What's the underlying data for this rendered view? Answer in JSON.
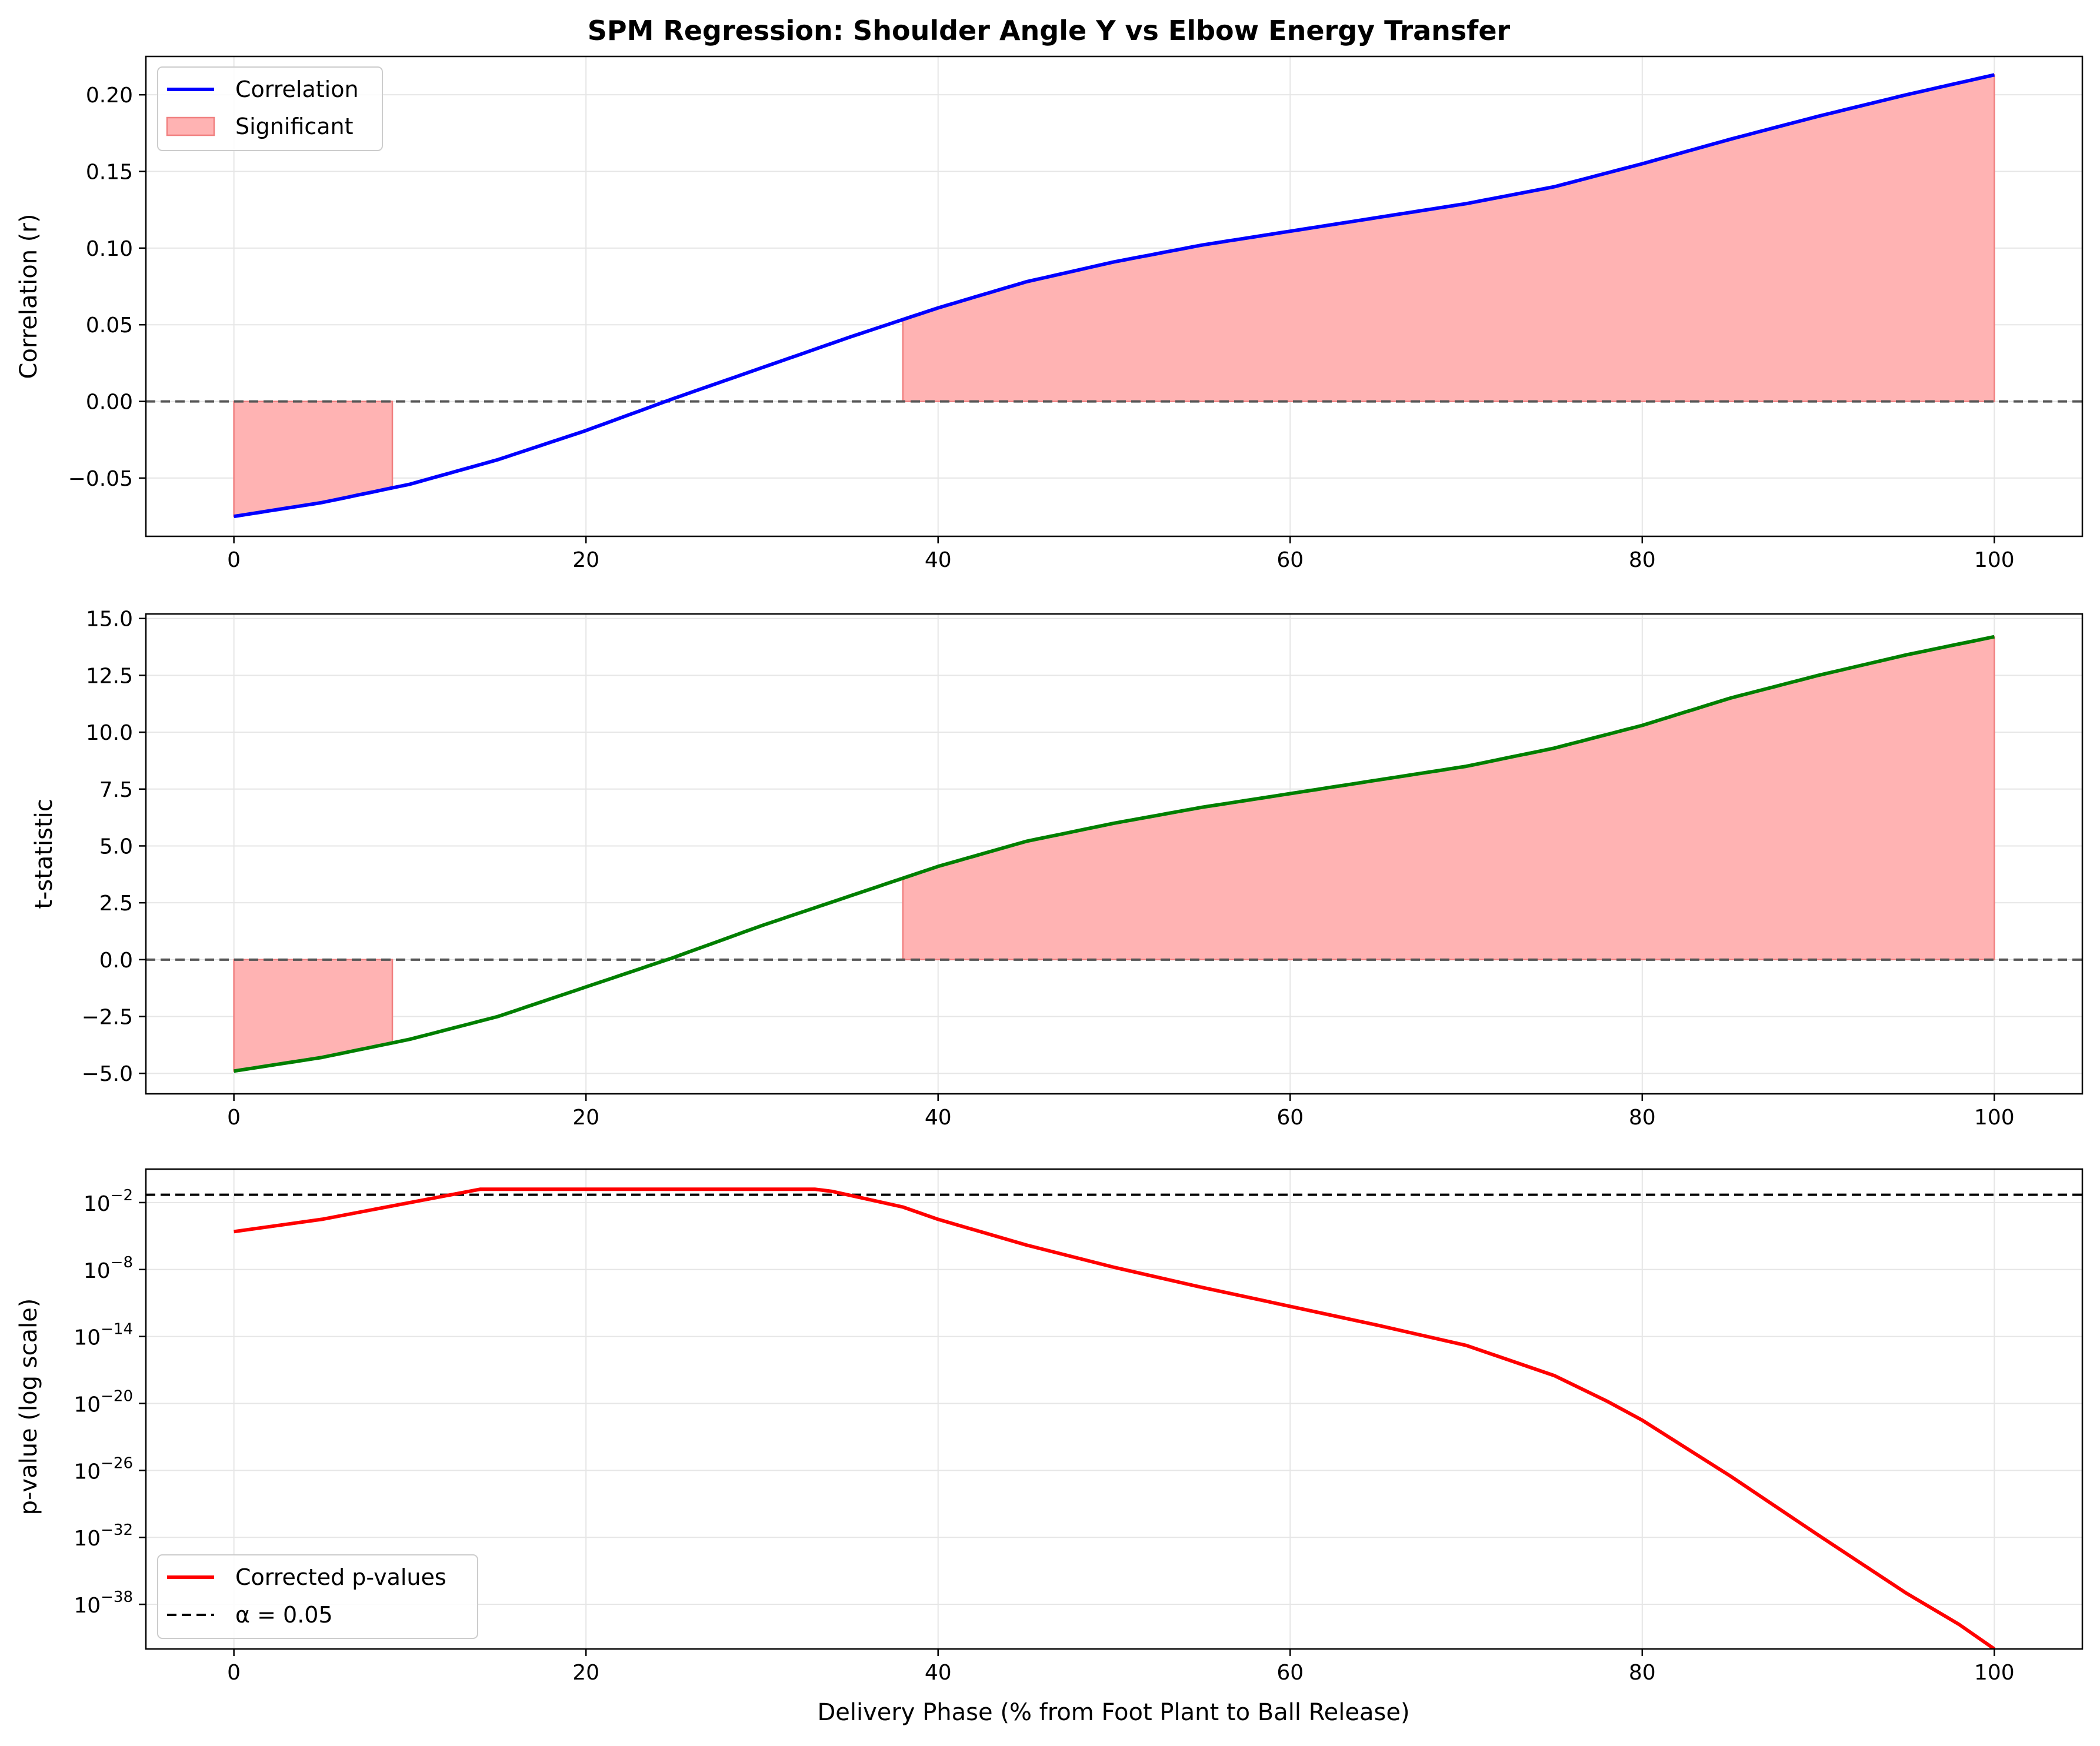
{
  "colors": {
    "correlation_line": "#0000ff",
    "t_line": "#007f00",
    "p_line": "#ff0000",
    "significant_fill": "#ffb3b3",
    "significant_edge": "#f08080",
    "zero_line": "#555555",
    "alpha_line": "#000000",
    "grid": "#e6e6e6"
  },
  "chart_data": [
    {
      "type": "area",
      "title": "SPM Regression: Shoulder Angle Y vs Elbow Energy Transfer",
      "ylabel": "Correlation (r)",
      "xlabel": "",
      "xlim": [
        -5,
        105
      ],
      "ylim": [
        -0.088,
        0.225
      ],
      "xticks": [
        0,
        20,
        40,
        60,
        80,
        100
      ],
      "yticks": [
        -0.05,
        0.0,
        0.05,
        0.1,
        0.15,
        0.2
      ],
      "ytick_labels": [
        "−0.05",
        "0.00",
        "0.05",
        "0.10",
        "0.15",
        "0.20"
      ],
      "grid": true,
      "legend": {
        "placement": "upper-left",
        "entries": [
          "Correlation",
          "Significant"
        ]
      },
      "reference_line": {
        "y": 0,
        "style": "dashed"
      },
      "significant_regions": [
        [
          0,
          9
        ],
        [
          38,
          100
        ]
      ],
      "series": [
        {
          "name": "Correlation",
          "x": [
            0,
            5,
            10,
            15,
            20,
            25,
            30,
            35,
            40,
            45,
            50,
            55,
            60,
            65,
            70,
            75,
            80,
            85,
            90,
            95,
            100
          ],
          "y": [
            -0.075,
            -0.066,
            -0.054,
            -0.038,
            -0.019,
            0.002,
            0.022,
            0.042,
            0.061,
            0.078,
            0.091,
            0.102,
            0.111,
            0.12,
            0.129,
            0.14,
            0.155,
            0.171,
            0.186,
            0.2,
            0.213
          ]
        }
      ]
    },
    {
      "type": "area",
      "title": "",
      "ylabel": "t-statistic",
      "xlabel": "",
      "xlim": [
        -5,
        105
      ],
      "ylim": [
        -5.9,
        15.2
      ],
      "xticks": [
        0,
        20,
        40,
        60,
        80,
        100
      ],
      "yticks": [
        -5.0,
        -2.5,
        0.0,
        2.5,
        5.0,
        7.5,
        10.0,
        12.5,
        15.0
      ],
      "ytick_labels": [
        "−5.0",
        "−2.5",
        "0.0",
        "2.5",
        "5.0",
        "7.5",
        "10.0",
        "12.5",
        "15.0"
      ],
      "grid": true,
      "reference_line": {
        "y": 0,
        "style": "dashed"
      },
      "significant_regions": [
        [
          0,
          9
        ],
        [
          38,
          100
        ]
      ],
      "series": [
        {
          "name": "",
          "x": [
            0,
            5,
            10,
            15,
            20,
            25,
            30,
            35,
            40,
            45,
            50,
            55,
            60,
            65,
            70,
            75,
            80,
            85,
            90,
            95,
            100
          ],
          "y": [
            -4.9,
            -4.3,
            -3.5,
            -2.5,
            -1.2,
            0.1,
            1.5,
            2.8,
            4.1,
            5.2,
            6.0,
            6.7,
            7.3,
            7.9,
            8.5,
            9.3,
            10.3,
            11.5,
            12.5,
            13.4,
            14.2
          ]
        }
      ]
    },
    {
      "type": "line",
      "title": "",
      "ylabel": "p-value (log scale)",
      "xlabel": "Delivery Phase (% from Foot Plant to Ball Release)",
      "xlim": [
        -5,
        105
      ],
      "yscale": "log",
      "ylim_log10": [
        -42,
        1
      ],
      "xticks": [
        0,
        20,
        40,
        60,
        80,
        100
      ],
      "yticks_log10": [
        -2,
        -8,
        -14,
        -20,
        -26,
        -32,
        -38
      ],
      "ytick_labels": [
        "−2",
        "−8",
        "−14",
        "−20",
        "−26",
        "−32",
        "−38"
      ],
      "grid": true,
      "legend": {
        "placement": "lower-left",
        "entries": [
          "Corrected p-values",
          "α = 0.05"
        ]
      },
      "alpha_line": {
        "y": 0.05,
        "label": "α = 0.05",
        "style": "dashed"
      },
      "series": [
        {
          "name": "Corrected p-values",
          "x": [
            0,
            5,
            10,
            14,
            15,
            20,
            25,
            30,
            33,
            34,
            36,
            38,
            40,
            45,
            50,
            55,
            60,
            65,
            70,
            75,
            78,
            80,
            85,
            90,
            95,
            98,
            100
          ],
          "y_log10": [
            -4.6,
            -3.5,
            -2.0,
            -0.8,
            -0.8,
            -0.8,
            -0.8,
            -0.8,
            -0.8,
            -1.0,
            -1.7,
            -2.4,
            -3.5,
            -5.8,
            -7.8,
            -9.6,
            -11.3,
            -13.0,
            -14.8,
            -17.5,
            -19.8,
            -21.5,
            -26.5,
            -31.8,
            -37.0,
            -39.8,
            -42.0
          ]
        }
      ]
    }
  ]
}
